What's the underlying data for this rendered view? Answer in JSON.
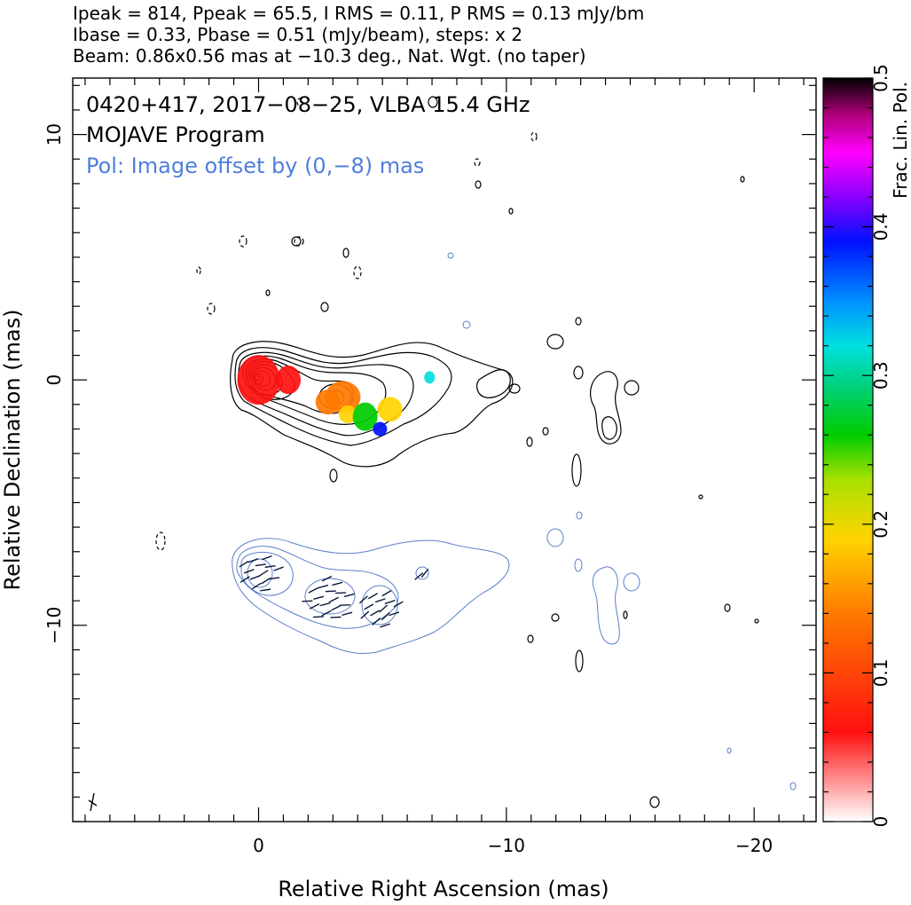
{
  "header": {
    "line1": "Ipeak = 814, Ppeak = 65.5, I RMS = 0.11, P RMS = 0.13 mJy/bm",
    "line2": "Ibase = 0.33, Pbase = 0.51 (mJy/beam), steps: x 2",
    "line3": "Beam: 0.86x0.56 mas at −10.3 deg., Nat. Wgt. (no taper)"
  },
  "annotations": {
    "source": "0420+417, 2017−08−25, VLBA 15.4 GHz",
    "program": "MOJAVE Program",
    "offset": "Pol: Image offset by (0,−8) mas"
  },
  "chart_data": {
    "type": "contour",
    "xlabel": "Relative Right Ascension (mas)",
    "ylabel": "Relative Declination (mas)",
    "xlim": [
      7.5,
      -22.5
    ],
    "ylim": [
      -18,
      12.3
    ],
    "x_ticks": [
      0,
      -10,
      -20
    ],
    "x_tick_labels": [
      "0",
      "−10",
      "−20"
    ],
    "y_ticks": [
      10,
      0,
      -10
    ],
    "y_tick_labels": [
      "10",
      "0",
      "−10"
    ],
    "colorbar": {
      "label": "Frac. Lin. Pol.",
      "range": [
        0,
        0.5
      ],
      "ticks": [
        0,
        0.1,
        0.2,
        0.3,
        0.4,
        0.5
      ],
      "tick_labels": [
        "0",
        "0.1",
        "0.2",
        "0.3",
        "0.4",
        "0.5"
      ]
    },
    "stokes_i_peak_mjy_per_beam": 814,
    "pol_peak_mjy_per_beam": 65.5,
    "i_rms": 0.11,
    "p_rms": 0.13,
    "i_base": 0.33,
    "p_base": 0.51,
    "contour_step_factor": 2,
    "beam": {
      "major_mas": 0.86,
      "minor_mas": 0.56,
      "pa_deg": -10.3
    },
    "pol_image_offset_mas": [
      0,
      -8
    ],
    "colors": {
      "i_contour": "#000000",
      "pol_contour": "#3a6fd8",
      "pol_annotation": "#4f7fdc"
    },
    "frac_pol_blobs": [
      {
        "x": 0.0,
        "y": 0.0,
        "frac": 0.11
      },
      {
        "x": -1.2,
        "y": 0.0,
        "frac": 0.1
      },
      {
        "x": -2.8,
        "y": -0.9,
        "frac": 0.18
      },
      {
        "x": -3.4,
        "y": -0.7,
        "frac": 0.16
      },
      {
        "x": -3.6,
        "y": -1.4,
        "frac": 0.2
      },
      {
        "x": -4.3,
        "y": -1.5,
        "frac": 0.3
      },
      {
        "x": -4.9,
        "y": -2.0,
        "frac": 0.4
      },
      {
        "x": -5.3,
        "y": -1.2,
        "frac": 0.22
      },
      {
        "x": -6.9,
        "y": 0.1,
        "frac": 0.32
      }
    ]
  }
}
